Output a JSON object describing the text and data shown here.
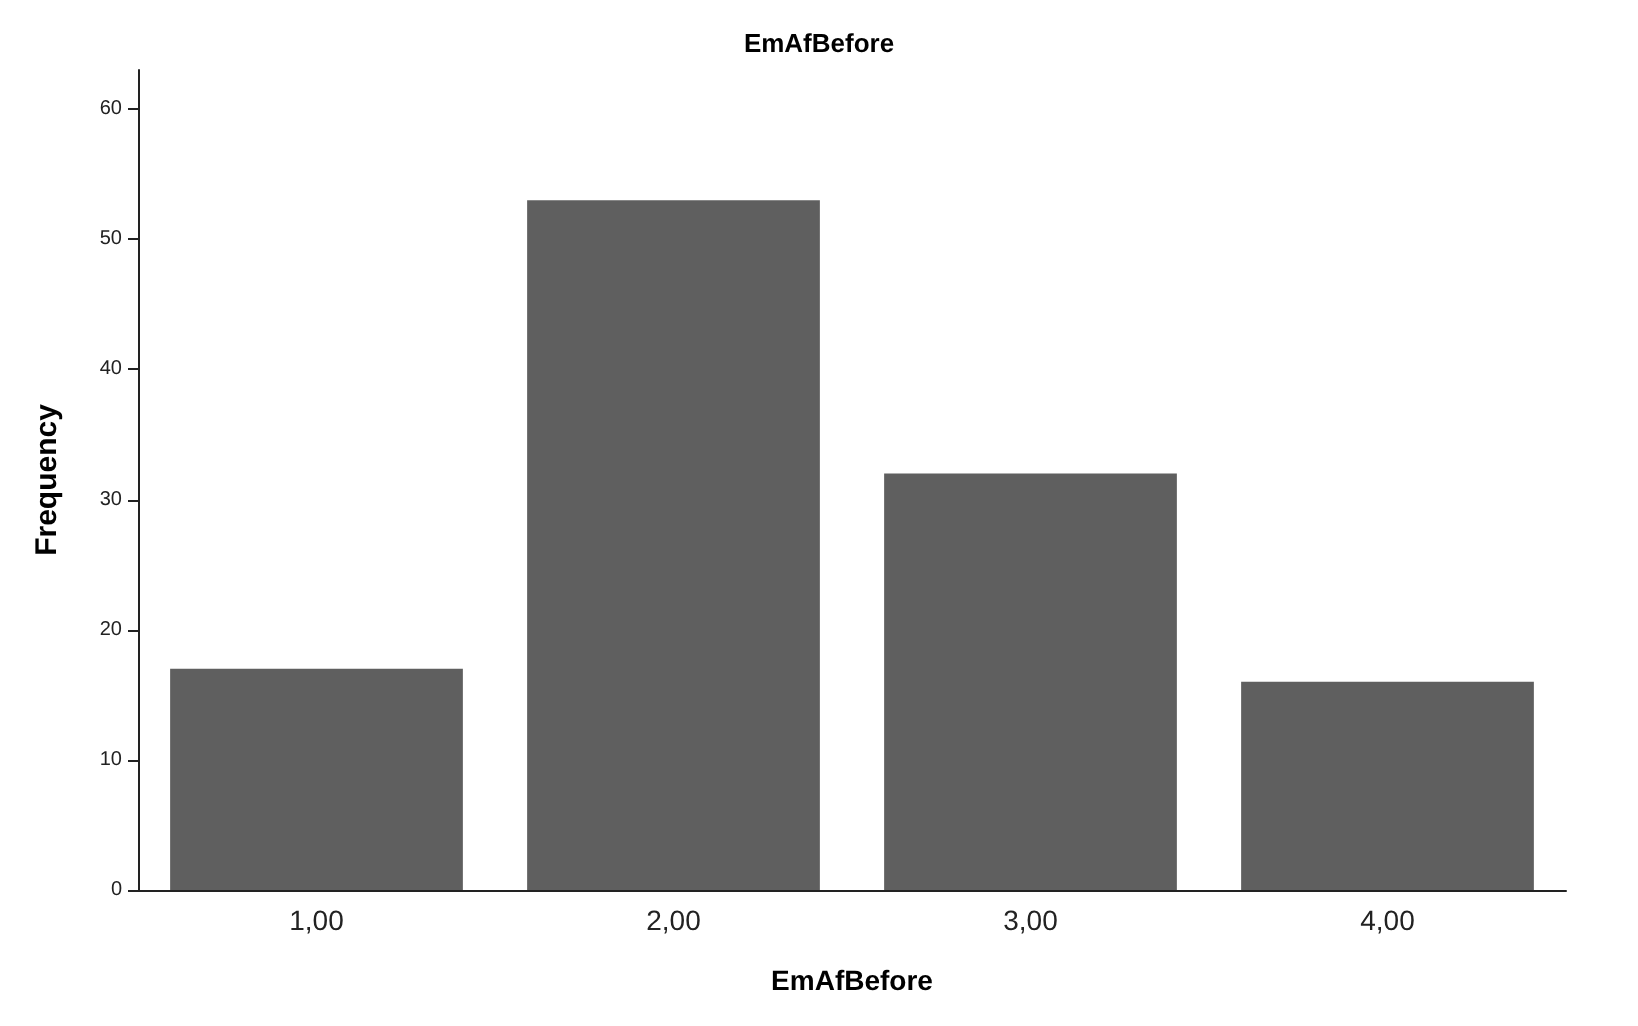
{
  "chart_data": {
    "type": "bar",
    "title": "EmAfBefore",
    "xlabel": "EmAfBefore",
    "ylabel": "Frequency",
    "categories": [
      "1,00",
      "2,00",
      "3,00",
      "4,00"
    ],
    "values": [
      17,
      53,
      32,
      16
    ],
    "color": "#5f5f5f",
    "ylim": [
      0,
      63
    ],
    "yticks": [
      0,
      10,
      20,
      30,
      40,
      50,
      60
    ],
    "grid": false
  }
}
